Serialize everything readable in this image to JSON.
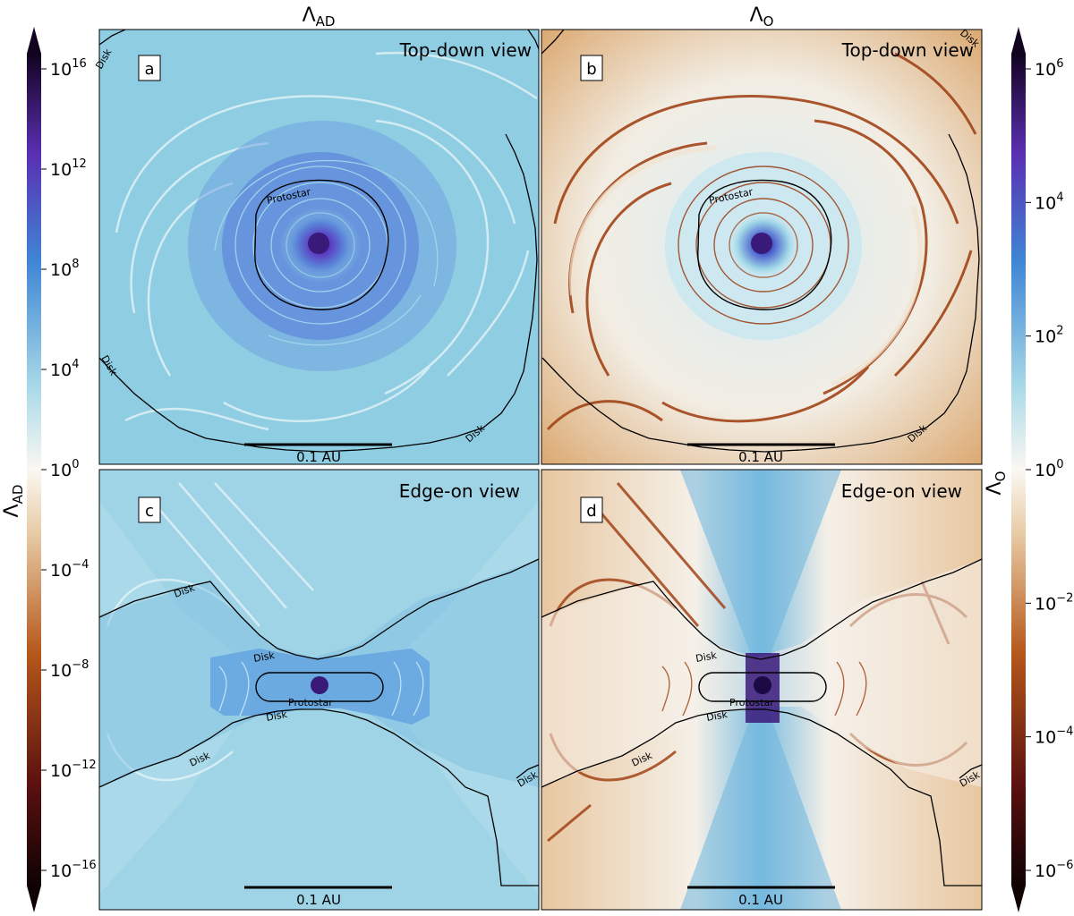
{
  "chart_data": [
    {
      "type": "heatmap",
      "panel": "a",
      "column_title": "Λ_AD",
      "view_label": "Top-down view",
      "scale_label": "0.1 AU",
      "contour_labels": [
        "Protostar",
        "Disk",
        "Disk",
        "Disk"
      ],
      "colorbar": {
        "label": "Λ_AD",
        "scale": "log",
        "range": [
          1e-16,
          1e+16
        ],
        "ticks": [
          "10^16",
          "10^12",
          "10^8",
          "10^4",
          "10^0",
          "10^−4",
          "10^−8",
          "10^−12",
          "10^−16"
        ]
      }
    },
    {
      "type": "heatmap",
      "panel": "b",
      "column_title": "Λ_O",
      "view_label": "Top-down view",
      "scale_label": "0.1 AU",
      "contour_labels": [
        "Protostar",
        "Disk",
        "Disk"
      ],
      "colorbar": {
        "label": "Λ_O",
        "scale": "log",
        "range": [
          1e-06,
          1000000.0
        ],
        "ticks": [
          "10^6",
          "10^4",
          "10^2",
          "10^0",
          "10^−2",
          "10^−4",
          "10^−6"
        ]
      }
    },
    {
      "type": "heatmap",
      "panel": "c",
      "view_label": "Edge-on view",
      "scale_label": "0.1 AU",
      "contour_labels": [
        "Protostar",
        "Disk",
        "Disk",
        "Disk",
        "Disk",
        "Disk"
      ]
    },
    {
      "type": "heatmap",
      "panel": "d",
      "view_label": "Edge-on view",
      "scale_label": "0.1 AU",
      "contour_labels": [
        "Protostar",
        "Disk",
        "Disk",
        "Disk",
        "Disk"
      ]
    }
  ],
  "colors": {
    "top_left_colormap": [
      "#190505",
      "#6e1a10",
      "#c0641c",
      "#f3ead8",
      "#bfe1ec",
      "#4a91d6",
      "#4b2aa0",
      "#0d0221"
    ],
    "ad_background": "#8fcde3",
    "ohm_background_warm": "#e9c9a0",
    "ohm_ring": "#9a3d14",
    "core": "#3a1a78"
  }
}
